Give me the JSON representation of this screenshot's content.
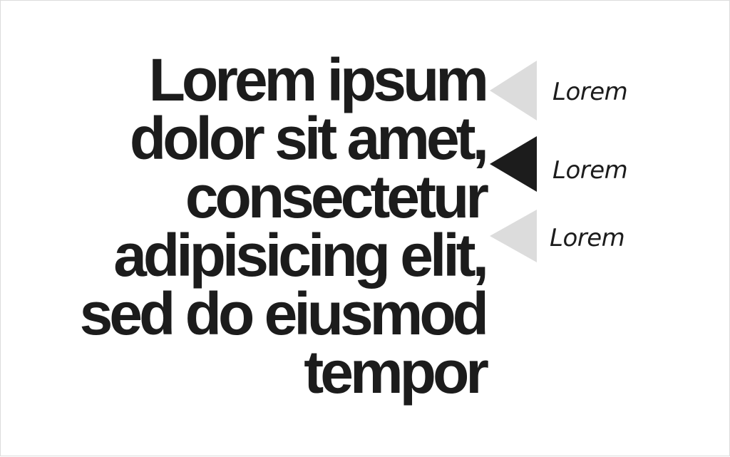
{
  "headline": {
    "lines": [
      "Lorem ipsum",
      "dolor sit amet,",
      "consectetur",
      "adipisicing elit,",
      "sed do eiusmod",
      "tempor"
    ]
  },
  "options": [
    {
      "label": "Lorem",
      "selected": false,
      "arrow_color": "#dcdcdc"
    },
    {
      "label": "Lorem",
      "selected": true,
      "arrow_color": "#1c1c1c"
    },
    {
      "label": "Lorem",
      "selected": false,
      "arrow_color": "#dcdcdc"
    }
  ],
  "colors": {
    "text": "#1c1c1c",
    "arrow_inactive": "#dcdcdc",
    "arrow_active": "#1c1c1c",
    "background": "#ffffff"
  }
}
